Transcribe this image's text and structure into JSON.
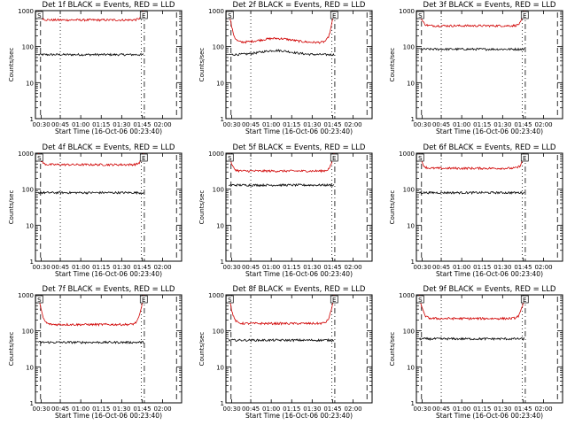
{
  "chart_data": [
    {
      "type": "line",
      "title": "Det 1f BLACK = Events, RED = LLD",
      "xlabel": "Start Time (16-Oct-06 00:23:40)",
      "ylabel": "Counts/sec",
      "xticks": [
        "00:30",
        "00:45",
        "01:00",
        "01:15",
        "01:30",
        "01:45",
        "02:00"
      ],
      "yticks": [
        "1",
        "10",
        "100",
        "1000"
      ],
      "ylim": [
        1,
        1000
      ],
      "yscale": "log",
      "markers": [
        "S",
        "S"
      ],
      "markers_end": [
        "E",
        "E"
      ],
      "series": [
        {
          "color": "#000000",
          "level": 60,
          "edge_level": 60,
          "bump": 0
        },
        {
          "color": "#d00000",
          "level": 550,
          "edge_level": 1000,
          "bump": 0
        }
      ]
    },
    {
      "type": "line",
      "title": "Det 2f BLACK = Events, RED = LLD",
      "xlabel": "Start Time (16-Oct-06 00:23:40)",
      "ylabel": "Counts/sec",
      "xticks": [
        "00:30",
        "00:45",
        "01:00",
        "01:15",
        "01:30",
        "01:45",
        "02:00"
      ],
      "yticks": [
        "1",
        "10",
        "100",
        "1000"
      ],
      "ylim": [
        1,
        1000
      ],
      "yscale": "log",
      "markers": [
        "S",
        "S"
      ],
      "markers_end": [
        "E",
        "E"
      ],
      "series": [
        {
          "color": "#000000",
          "level": 60,
          "edge_level": 60,
          "bump": 0.12
        },
        {
          "color": "#d00000",
          "level": 130,
          "edge_level": 1000,
          "bump": 0.12
        }
      ]
    },
    {
      "type": "line",
      "title": "Det 3f BLACK = Events, RED = LLD",
      "xlabel": "Start Time (16-Oct-06 00:23:40)",
      "ylabel": "Counts/sec",
      "xticks": [
        "00:30",
        "00:45",
        "01:00",
        "01:15",
        "01:30",
        "01:45",
        "02:00"
      ],
      "yticks": [
        "1",
        "10",
        "100",
        "1000"
      ],
      "ylim": [
        1,
        1000
      ],
      "yscale": "log",
      "markers": [
        "S",
        "S"
      ],
      "markers_end": [
        "E",
        "E"
      ],
      "series": [
        {
          "color": "#000000",
          "level": 85,
          "edge_level": 85,
          "bump": 0
        },
        {
          "color": "#d00000",
          "level": 380,
          "edge_level": 1000,
          "bump": 0
        }
      ]
    },
    {
      "type": "line",
      "title": "Det 4f BLACK = Events, RED = LLD",
      "xlabel": "Start Time (16-Oct-06 00:23:40)",
      "ylabel": "Counts/sec",
      "xticks": [
        "00:30",
        "00:45",
        "01:00",
        "01:15",
        "01:30",
        "01:45",
        "02:00"
      ],
      "yticks": [
        "1",
        "10",
        "100",
        "1000"
      ],
      "ylim": [
        1,
        1000
      ],
      "yscale": "log",
      "markers": [
        "S",
        "S"
      ],
      "markers_end": [
        "E",
        "E"
      ],
      "series": [
        {
          "color": "#000000",
          "level": 80,
          "edge_level": 80,
          "bump": 0
        },
        {
          "color": "#d00000",
          "level": 480,
          "edge_level": 1000,
          "bump": 0
        }
      ]
    },
    {
      "type": "line",
      "title": "Det 5f BLACK = Events, RED = LLD",
      "xlabel": "Start Time (16-Oct-06 00:23:40)",
      "ylabel": "Counts/sec",
      "xticks": [
        "00:30",
        "00:45",
        "01:00",
        "01:15",
        "01:30",
        "01:45",
        "02:00"
      ],
      "yticks": [
        "1",
        "10",
        "100",
        "1000"
      ],
      "ylim": [
        1,
        1000
      ],
      "yscale": "log",
      "markers": [
        "S",
        "S"
      ],
      "markers_end": [
        "E",
        "E"
      ],
      "series": [
        {
          "color": "#000000",
          "level": 130,
          "edge_level": 130,
          "bump": 0
        },
        {
          "color": "#d00000",
          "level": 320,
          "edge_level": 1000,
          "bump": 0
        }
      ]
    },
    {
      "type": "line",
      "title": "Det 6f BLACK = Events, RED = LLD",
      "xlabel": "Start Time (16-Oct-06 00:23:40)",
      "ylabel": "Counts/sec",
      "xticks": [
        "00:30",
        "00:45",
        "01:00",
        "01:15",
        "01:30",
        "01:45",
        "02:00"
      ],
      "yticks": [
        "1",
        "10",
        "100",
        "1000"
      ],
      "ylim": [
        1,
        1000
      ],
      "yscale": "log",
      "markers": [
        "S",
        "S"
      ],
      "markers_end": [
        "E",
        "E"
      ],
      "series": [
        {
          "color": "#000000",
          "level": 80,
          "edge_level": 80,
          "bump": 0
        },
        {
          "color": "#d00000",
          "level": 380,
          "edge_level": 1000,
          "bump": 0
        }
      ]
    },
    {
      "type": "line",
      "title": "Det 7f BLACK = Events, RED = LLD",
      "xlabel": "Start Time (16-Oct-06 00:23:40)",
      "ylabel": "Counts/sec",
      "xticks": [
        "00:30",
        "00:45",
        "01:00",
        "01:15",
        "01:30",
        "01:45",
        "02:00"
      ],
      "yticks": [
        "1",
        "10",
        "100",
        "1000"
      ],
      "ylim": [
        1,
        1000
      ],
      "yscale": "log",
      "markers": [
        "S",
        "S"
      ],
      "markers_end": [
        "E",
        "E"
      ],
      "series": [
        {
          "color": "#000000",
          "level": 48,
          "edge_level": 48,
          "bump": 0
        },
        {
          "color": "#d00000",
          "level": 150,
          "edge_level": 1000,
          "bump": 0
        }
      ]
    },
    {
      "type": "line",
      "title": "Det 8f BLACK = Events, RED = LLD",
      "xlabel": "Start Time (16-Oct-06 00:23:40)",
      "ylabel": "Counts/sec",
      "xticks": [
        "00:30",
        "00:45",
        "01:00",
        "01:15",
        "01:30",
        "01:45",
        "02:00"
      ],
      "yticks": [
        "1",
        "10",
        "100",
        "1000"
      ],
      "ylim": [
        1,
        1000
      ],
      "yscale": "log",
      "markers": [
        "S",
        "S"
      ],
      "markers_end": [
        "E",
        "E"
      ],
      "series": [
        {
          "color": "#000000",
          "level": 55,
          "edge_level": 55,
          "bump": 0
        },
        {
          "color": "#d00000",
          "level": 160,
          "edge_level": 1000,
          "bump": 0
        }
      ]
    },
    {
      "type": "line",
      "title": "Det 9f BLACK = Events, RED = LLD",
      "xlabel": "Start Time (16-Oct-06 00:23:40)",
      "ylabel": "Counts/sec",
      "xticks": [
        "00:30",
        "00:45",
        "01:00",
        "01:15",
        "01:30",
        "01:45",
        "02:00"
      ],
      "yticks": [
        "1",
        "10",
        "100",
        "1000"
      ],
      "ylim": [
        1,
        1000
      ],
      "yscale": "log",
      "markers": [
        "S",
        "S"
      ],
      "markers_end": [
        "E",
        "E"
      ],
      "series": [
        {
          "color": "#000000",
          "level": 60,
          "edge_level": 60,
          "bump": 0
        },
        {
          "color": "#d00000",
          "level": 220,
          "edge_level": 1000,
          "bump": 0
        }
      ]
    }
  ]
}
